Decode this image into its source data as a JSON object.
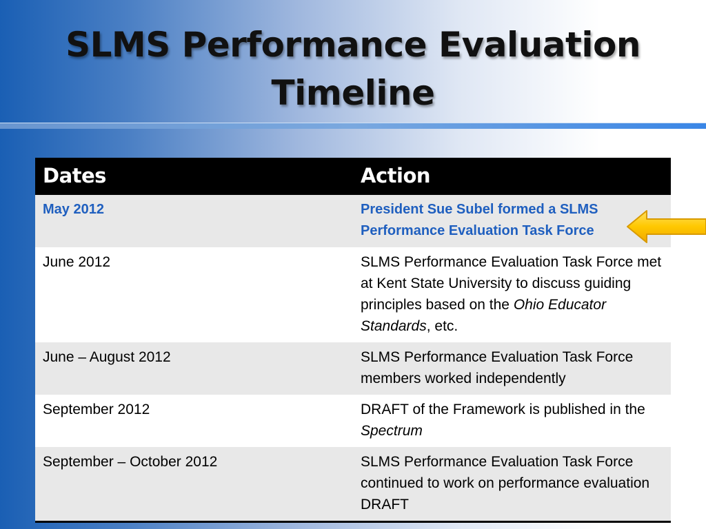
{
  "slide": {
    "title_line1": "SLMS Performance Evaluation",
    "title_line2": "Timeline"
  },
  "table": {
    "headers": [
      "Dates",
      "Action"
    ],
    "rows": [
      {
        "date": "May 2012",
        "action": "President Sue Subel formed a SLMS Performance Evaluation Task Force",
        "highlighted": true
      },
      {
        "date": "June 2012",
        "action_a": "SLMS Performance Evaluation Task Force met at Kent State University to discuss guiding principles based on the ",
        "action_italic": "Ohio Educator Standards",
        "action_b": ", etc."
      },
      {
        "date": "June – August 2012",
        "action": "SLMS Performance Evaluation Task Force members  worked independently"
      },
      {
        "date": "September 2012",
        "action_a": "DRAFT of the Framework is published in the ",
        "action_italic": "Spectrum"
      },
      {
        "date": "September – October 2012",
        "action": "SLMS Performance Evaluation Task Force continued to work on performance evaluation DRAFT"
      }
    ]
  },
  "icons": {
    "pointer": "arrow-left-icon"
  },
  "colors": {
    "highlight_text": "#1f5fbf",
    "arrow_fill": "#ffc800",
    "header_bg": "#000000"
  }
}
